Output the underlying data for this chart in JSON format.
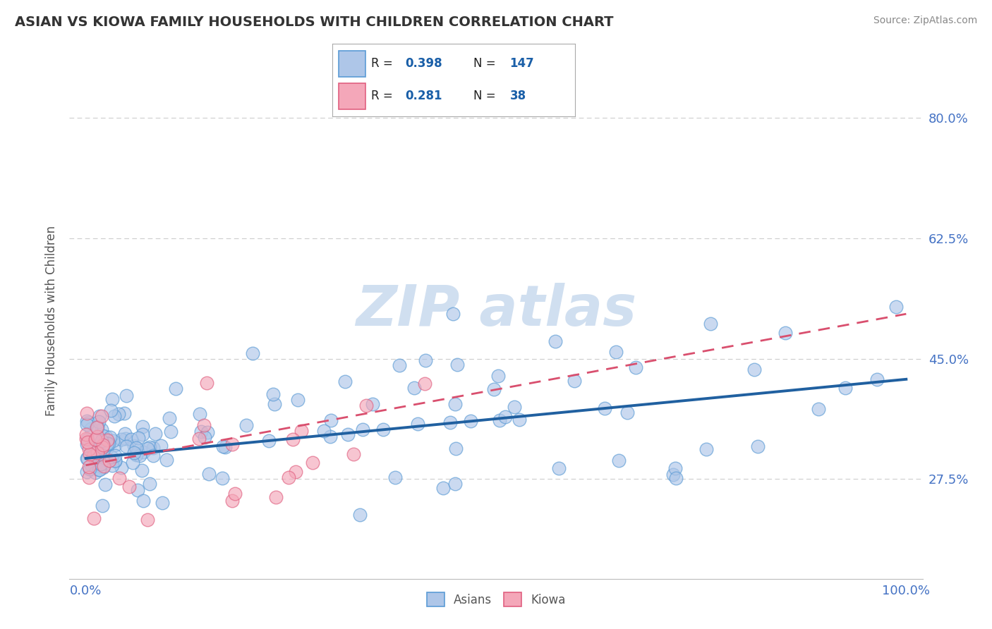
{
  "title": "ASIAN VS KIOWA FAMILY HOUSEHOLDS WITH CHILDREN CORRELATION CHART",
  "source": "Source: ZipAtlas.com",
  "xlabel": "",
  "ylabel": "Family Households with Children",
  "xlim": [
    -0.02,
    1.02
  ],
  "ylim": [
    0.13,
    0.88
  ],
  "xticks": [
    0.0,
    1.0
  ],
  "xtick_labels": [
    "0.0%",
    "100.0%"
  ],
  "yticks": [
    0.275,
    0.45,
    0.625,
    0.8
  ],
  "ytick_labels": [
    "27.5%",
    "45.0%",
    "62.5%",
    "80.0%"
  ],
  "asian_color": "#aec6e8",
  "asian_edge_color": "#5b9bd5",
  "kiowa_color": "#f4a7b9",
  "kiowa_edge_color": "#e06080",
  "asian_R": 0.398,
  "asian_N": 147,
  "kiowa_R": 0.281,
  "kiowa_N": 38,
  "asian_line_color": "#2060a0",
  "kiowa_line_color": "#d94f6e",
  "background_color": "#ffffff",
  "grid_color": "#cccccc",
  "watermark_color": "#d0dff0",
  "title_color": "#333333",
  "axis_label_color": "#555555",
  "tick_label_color": "#4472c4",
  "legend_text_color": "#1a5fa8"
}
